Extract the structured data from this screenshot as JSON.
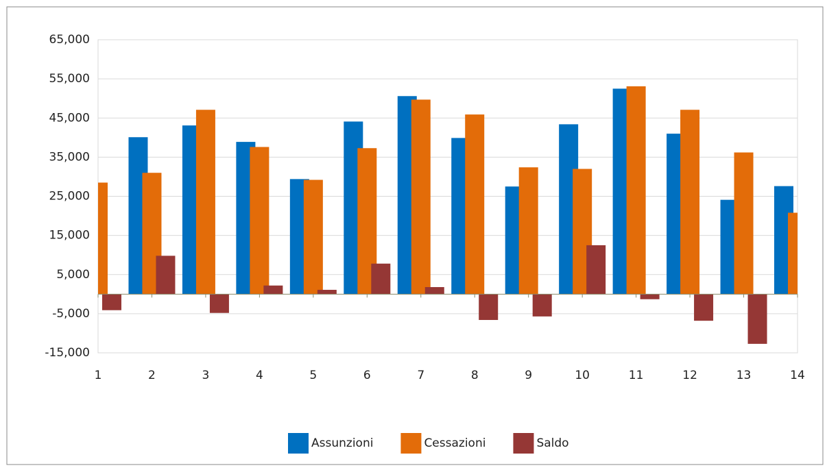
{
  "chart_data": {
    "type": "bar",
    "x": [
      1,
      2,
      3,
      4,
      5,
      6,
      7,
      8,
      9,
      10,
      11,
      12,
      13,
      14
    ],
    "series": [
      {
        "name": "Assunzioni",
        "color": "#0070c0",
        "values": [
          null,
          40100,
          43100,
          38900,
          29400,
          44100,
          50600,
          39900,
          27500,
          43400,
          52500,
          41000,
          24100,
          27600
        ]
      },
      {
        "name": "Cessazioni",
        "color": "#e36c09",
        "values": [
          28500,
          31000,
          47100,
          37600,
          29200,
          37300,
          49700,
          45900,
          32400,
          32000,
          53100,
          47100,
          36200,
          20800
        ]
      },
      {
        "name": "Saldo",
        "color": "#953735",
        "values": [
          -4100,
          9800,
          -4800,
          2200,
          1100,
          7800,
          1800,
          -6600,
          -5700,
          12500,
          -1300,
          -6800,
          -12700,
          null
        ]
      }
    ],
    "xlim": [
      1,
      14
    ],
    "xticks": [
      1,
      2,
      3,
      4,
      5,
      6,
      7,
      8,
      9,
      10,
      11,
      12,
      13,
      14
    ],
    "ylim": [
      -15000,
      65000
    ],
    "yticks": [
      {
        "value": -15000,
        "label": "-15,000"
      },
      {
        "value": -5000,
        "label": "-5,000"
      },
      {
        "value": 5000,
        "label": "5,000"
      },
      {
        "value": 15000,
        "label": "15,000"
      },
      {
        "value": 25000,
        "label": "25,000"
      },
      {
        "value": 35000,
        "label": "35,000"
      },
      {
        "value": 45000,
        "label": "45,000"
      },
      {
        "value": 55000,
        "label": "55,000"
      },
      {
        "value": 65000,
        "label": "65,000"
      }
    ],
    "grid": true,
    "legend": "bottom"
  }
}
